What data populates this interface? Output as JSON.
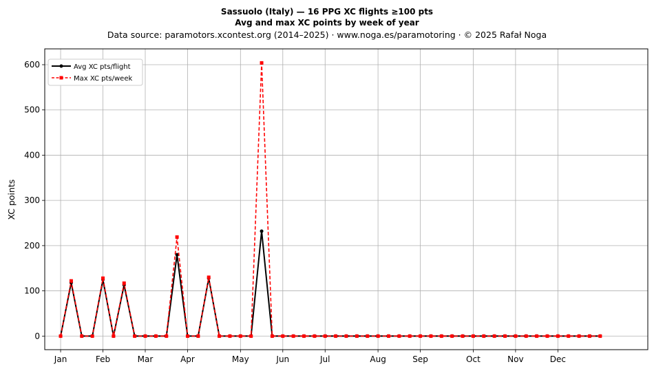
{
  "chart_data": {
    "type": "line",
    "title_line1": "Sassuolo (Italy)  —  16 PPG XC flights ≥100 pts",
    "title_line2": "Avg and max XC points by week of year",
    "subtitle": "Data source: paramotors.xcontest.org (2014–2025)  ·  www.noga.es/paramotoring  ·  © 2025 Rafał Noga",
    "ylabel": "XC points",
    "xlabel": "",
    "ylim": [
      -30,
      635
    ],
    "yticks": [
      0,
      100,
      200,
      300,
      400,
      500,
      600
    ],
    "xlim": [
      -1.5,
      55.5
    ],
    "month_ticks": [
      {
        "label": "Jan",
        "week": 0
      },
      {
        "label": "Feb",
        "week": 4
      },
      {
        "label": "Mar",
        "week": 8
      },
      {
        "label": "Apr",
        "week": 12
      },
      {
        "label": "May",
        "week": 17
      },
      {
        "label": "Jun",
        "week": 21
      },
      {
        "label": "Jul",
        "week": 25
      },
      {
        "label": "Aug",
        "week": 30
      },
      {
        "label": "Sep",
        "week": 34
      },
      {
        "label": "Oct",
        "week": 39
      },
      {
        "label": "Nov",
        "week": 43
      },
      {
        "label": "Dec",
        "week": 47
      }
    ],
    "grid": true,
    "legend_position": "top-left",
    "weeks": [
      1,
      2,
      3,
      4,
      5,
      6,
      7,
      8,
      9,
      10,
      11,
      12,
      13,
      14,
      15,
      16,
      17,
      18,
      19,
      20,
      21,
      22,
      23,
      24,
      25,
      26,
      27,
      28,
      29,
      30,
      31,
      32,
      33,
      34,
      35,
      36,
      37,
      38,
      39,
      40,
      41,
      42,
      43,
      44,
      45,
      46,
      47,
      48,
      49,
      50,
      51,
      52
    ],
    "series": [
      {
        "name": "Avg XC pts/flight",
        "color": "#000000",
        "style": "solid-circle",
        "values": [
          0,
          118,
          0,
          0,
          125,
          0,
          113,
          0,
          0,
          0,
          0,
          180,
          0,
          0,
          128,
          0,
          0,
          0,
          0,
          232,
          0,
          0,
          0,
          0,
          0,
          0,
          0,
          0,
          0,
          0,
          0,
          0,
          0,
          0,
          0,
          0,
          0,
          0,
          0,
          0,
          0,
          0,
          0,
          0,
          0,
          0,
          0,
          0,
          0,
          0,
          0,
          0
        ]
      },
      {
        "name": "Max XC pts/week",
        "color": "#ff0000",
        "style": "dashed-square",
        "values": [
          0,
          122,
          0,
          0,
          128,
          0,
          117,
          0,
          0,
          0,
          0,
          219,
          0,
          0,
          130,
          0,
          0,
          0,
          0,
          604,
          0,
          0,
          0,
          0,
          0,
          0,
          0,
          0,
          0,
          0,
          0,
          0,
          0,
          0,
          0,
          0,
          0,
          0,
          0,
          0,
          0,
          0,
          0,
          0,
          0,
          0,
          0,
          0,
          0,
          0,
          0,
          0
        ]
      }
    ]
  }
}
